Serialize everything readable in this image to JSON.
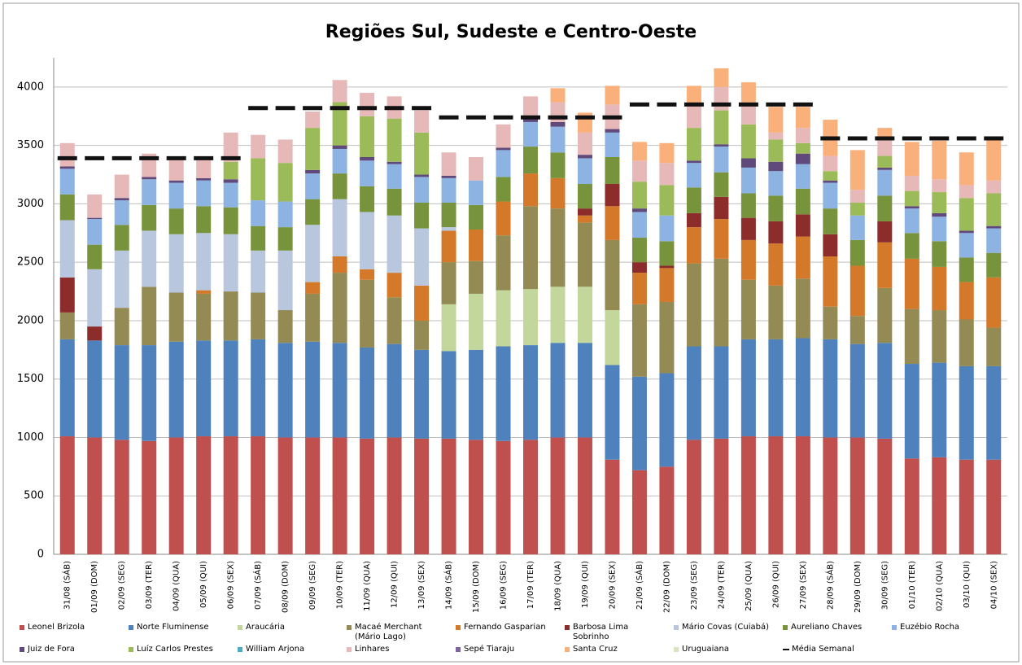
{
  "chart_data": {
    "type": "bar",
    "stacked": true,
    "title": "Regiões Sul, Sudeste e Centro-Oeste",
    "categories": [
      "31/08 (SÁB)",
      "01/09 (DOM)",
      "02/09 (SEG)",
      "03/09 (TER)",
      "04/09 (QUA)",
      "05/09 (QUI)",
      "06/09 (SEX)",
      "07/09 (SÁB)",
      "08/09 (DOM)",
      "09/09 (SEG)",
      "10/09 (TER)",
      "11/09 (QUA)",
      "12/09 (QUI)",
      "13/09 (SEX)",
      "14/09 (SÁB)",
      "15/09 (DOM)",
      "16/09 (SEG)",
      "17/09 (TER)",
      "18/09 (QUA)",
      "19/09 (QUI)",
      "20/09 (SEX)",
      "21/09 (SÁB)",
      "22/09 (DOM)",
      "23/09 (SEG)",
      "24/09 (TER)",
      "25/09 (QUA)",
      "26/09 (QUI)",
      "27/09 (SEX)",
      "28/09 (SÁB)",
      "29/09 (DOM)",
      "30/09 (SEG)",
      "01/10 (TER)",
      "02/10 (QUA)",
      "03/10 (QUI)",
      "04/10 (SEX)"
    ],
    "ylim": [
      0,
      4250
    ],
    "yticks": [
      0,
      500,
      1000,
      1500,
      2000,
      2500,
      3000,
      3500,
      4000
    ],
    "grid": true,
    "series": [
      {
        "name": "Leonel Brizola",
        "color": "#c0504d",
        "values": [
          1010,
          1000,
          980,
          970,
          1000,
          1010,
          1010,
          1010,
          1000,
          1000,
          1000,
          990,
          1000,
          990,
          990,
          980,
          970,
          980,
          1000,
          1000,
          810,
          720,
          750,
          980,
          990,
          1010,
          1010,
          1010,
          1000,
          1000,
          990,
          820,
          830,
          810,
          810
        ]
      },
      {
        "name": "Norte Fluminense",
        "color": "#4f81bd",
        "values": [
          830,
          830,
          810,
          820,
          820,
          820,
          820,
          830,
          810,
          820,
          810,
          780,
          800,
          760,
          750,
          770,
          810,
          810,
          810,
          810,
          810,
          800,
          800,
          800,
          790,
          830,
          830,
          840,
          840,
          800,
          820,
          810,
          810,
          800,
          800
        ]
      },
      {
        "name": "Araucária",
        "color": "#c3d69b",
        "values": [
          0,
          0,
          0,
          0,
          0,
          0,
          0,
          0,
          0,
          0,
          0,
          0,
          0,
          0,
          400,
          480,
          480,
          480,
          480,
          480,
          470,
          0,
          0,
          0,
          0,
          0,
          0,
          0,
          0,
          0,
          0,
          0,
          0,
          0,
          0
        ]
      },
      {
        "name": "Macaé Merchant (Mário Lago)",
        "color": "#948a54",
        "values": [
          230,
          0,
          320,
          500,
          420,
          400,
          420,
          400,
          280,
          410,
          600,
          580,
          400,
          250,
          360,
          280,
          470,
          710,
          670,
          550,
          600,
          620,
          610,
          710,
          750,
          510,
          460,
          510,
          280,
          240,
          470,
          470,
          450,
          400,
          330
        ]
      },
      {
        "name": "Fernando Gasparian",
        "color": "#d4782a",
        "values": [
          0,
          0,
          0,
          0,
          0,
          30,
          0,
          0,
          0,
          100,
          140,
          90,
          210,
          300,
          270,
          270,
          290,
          280,
          260,
          60,
          290,
          270,
          290,
          310,
          340,
          340,
          360,
          360,
          430,
          430,
          390,
          430,
          370,
          320,
          430
        ]
      },
      {
        "name": "Barbosa Lima Sobrinho",
        "color": "#8c2d2b",
        "values": [
          300,
          120,
          0,
          0,
          0,
          0,
          0,
          0,
          0,
          0,
          0,
          0,
          0,
          0,
          0,
          0,
          0,
          0,
          0,
          60,
          190,
          90,
          20,
          120,
          190,
          190,
          190,
          190,
          190,
          0,
          180,
          0,
          0,
          0,
          0
        ]
      },
      {
        "name": "Mário Covas (Cuiabá)",
        "color": "#b9c7de",
        "values": [
          490,
          490,
          490,
          480,
          500,
          490,
          490,
          360,
          510,
          490,
          490,
          490,
          490,
          490,
          30,
          0,
          0,
          0,
          0,
          0,
          0,
          0,
          0,
          0,
          0,
          0,
          0,
          0,
          0,
          0,
          0,
          0,
          0,
          0,
          0
        ]
      },
      {
        "name": "Aureliano Chaves",
        "color": "#77933c",
        "values": [
          220,
          210,
          220,
          220,
          220,
          230,
          230,
          210,
          200,
          220,
          220,
          220,
          230,
          220,
          210,
          210,
          210,
          230,
          220,
          210,
          230,
          210,
          210,
          220,
          210,
          210,
          220,
          220,
          220,
          220,
          220,
          220,
          220,
          210,
          210
        ]
      },
      {
        "name": "Euzébio Rocha",
        "color": "#8db3e2",
        "values": [
          220,
          220,
          210,
          220,
          220,
          220,
          210,
          220,
          220,
          220,
          210,
          220,
          210,
          220,
          210,
          210,
          230,
          210,
          220,
          220,
          210,
          220,
          220,
          210,
          220,
          220,
          210,
          210,
          220,
          210,
          220,
          210,
          210,
          210,
          210
        ]
      },
      {
        "name": "Juiz de Fora",
        "color": "#604a7b",
        "values": [
          20,
          10,
          20,
          20,
          20,
          20,
          30,
          0,
          0,
          30,
          30,
          30,
          20,
          20,
          20,
          0,
          20,
          30,
          40,
          30,
          30,
          30,
          0,
          20,
          20,
          80,
          80,
          90,
          20,
          0,
          20,
          20,
          30,
          20,
          20
        ]
      },
      {
        "name": "Luíz Carlos Prestes",
        "color": "#9bbb59",
        "values": [
          0,
          0,
          0,
          0,
          0,
          0,
          150,
          360,
          330,
          360,
          370,
          350,
          370,
          360,
          0,
          0,
          0,
          0,
          0,
          0,
          0,
          230,
          260,
          280,
          290,
          290,
          190,
          90,
          80,
          110,
          100,
          130,
          180,
          280,
          280
        ]
      },
      {
        "name": "William Arjona",
        "color": "#4bacc6",
        "values": [
          0,
          0,
          0,
          0,
          0,
          0,
          0,
          0,
          0,
          0,
          0,
          0,
          0,
          0,
          0,
          0,
          0,
          0,
          0,
          0,
          0,
          0,
          0,
          0,
          0,
          0,
          0,
          0,
          0,
          0,
          0,
          0,
          0,
          0,
          0
        ]
      },
      {
        "name": "Linhares",
        "color": "#e6b9b8",
        "values": [
          200,
          200,
          200,
          200,
          180,
          160,
          250,
          200,
          200,
          140,
          190,
          200,
          190,
          190,
          200,
          200,
          200,
          190,
          170,
          190,
          210,
          180,
          190,
          190,
          200,
          190,
          60,
          130,
          130,
          110,
          160,
          130,
          110,
          110,
          110
        ]
      },
      {
        "name": "Sepé Tiaraju",
        "color": "#8064a2",
        "values": [
          0,
          0,
          0,
          0,
          0,
          0,
          0,
          0,
          0,
          0,
          0,
          0,
          0,
          0,
          0,
          0,
          0,
          0,
          0,
          0,
          0,
          0,
          0,
          0,
          0,
          0,
          0,
          0,
          0,
          0,
          0,
          0,
          0,
          0,
          0
        ]
      },
      {
        "name": "Santa Cruz",
        "color": "#fab07a",
        "values": [
          0,
          0,
          0,
          0,
          0,
          0,
          0,
          0,
          0,
          0,
          0,
          0,
          0,
          0,
          0,
          0,
          0,
          0,
          120,
          170,
          160,
          160,
          170,
          170,
          160,
          170,
          220,
          180,
          310,
          340,
          80,
          290,
          330,
          280,
          350
        ]
      },
      {
        "name": "Uruguaiana",
        "color": "#d7e4bd",
        "values": [
          0,
          0,
          0,
          0,
          0,
          0,
          0,
          0,
          0,
          0,
          0,
          0,
          0,
          0,
          0,
          0,
          0,
          0,
          0,
          0,
          0,
          0,
          0,
          0,
          0,
          0,
          0,
          0,
          0,
          0,
          0,
          0,
          0,
          0,
          0
        ]
      },
      {
        "name": "Média Semanal",
        "type": "line",
        "color": "#111111",
        "values": [
          3390,
          3390,
          3390,
          3390,
          3390,
          3390,
          3390,
          3820,
          3820,
          3820,
          3820,
          3820,
          3820,
          3820,
          3740,
          3740,
          3740,
          3740,
          3740,
          3740,
          3740,
          3850,
          3850,
          3850,
          3850,
          3850,
          3850,
          3850,
          3560,
          3560,
          3560,
          3560,
          3560,
          3560,
          3560
        ]
      }
    ]
  }
}
